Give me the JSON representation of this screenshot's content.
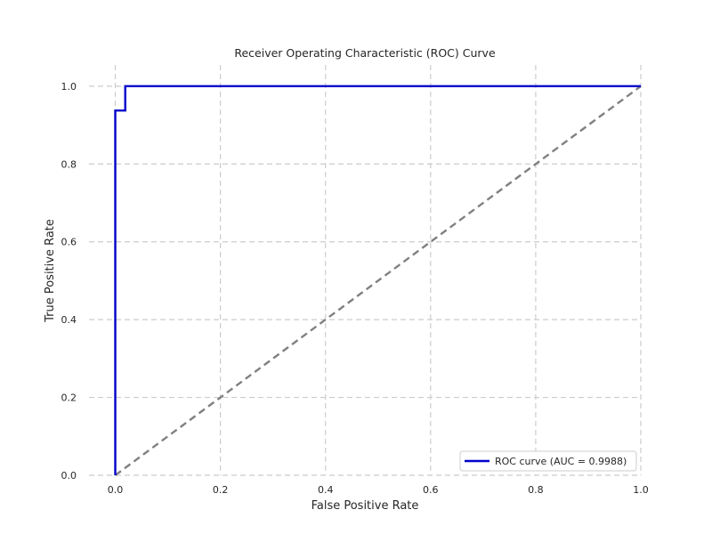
{
  "chart_data": {
    "type": "line",
    "title": "Receiver Operating Characteristic (ROC) Curve",
    "xlabel": "False Positive Rate",
    "ylabel": "True Positive Rate",
    "xlim": [
      -0.05,
      1.0
    ],
    "ylim": [
      0.0,
      1.05
    ],
    "x_ticks": [
      0.0,
      0.2,
      0.4,
      0.6,
      0.8,
      1.0
    ],
    "y_ticks": [
      0.0,
      0.2,
      0.4,
      0.6,
      0.8,
      1.0
    ],
    "x_tick_labels": [
      "0.0",
      "0.2",
      "0.4",
      "0.6",
      "0.8",
      "1.0"
    ],
    "y_tick_labels": [
      "0.0",
      "0.2",
      "0.4",
      "0.6",
      "0.8",
      "1.0"
    ],
    "grid": true,
    "legend_position": "lower-right",
    "series": [
      {
        "name": "ROC curve (AUC =  0.9988)",
        "color": "#0000cc",
        "style": "solid",
        "x": [
          0.0,
          0.0,
          0.019,
          0.019,
          1.0
        ],
        "y": [
          0.0,
          0.9375,
          0.9375,
          1.0,
          1.0
        ]
      },
      {
        "color": "#808080",
        "style": "dashed",
        "x": [
          0.0,
          1.0
        ],
        "y": [
          0.0,
          1.0
        ]
      }
    ]
  }
}
